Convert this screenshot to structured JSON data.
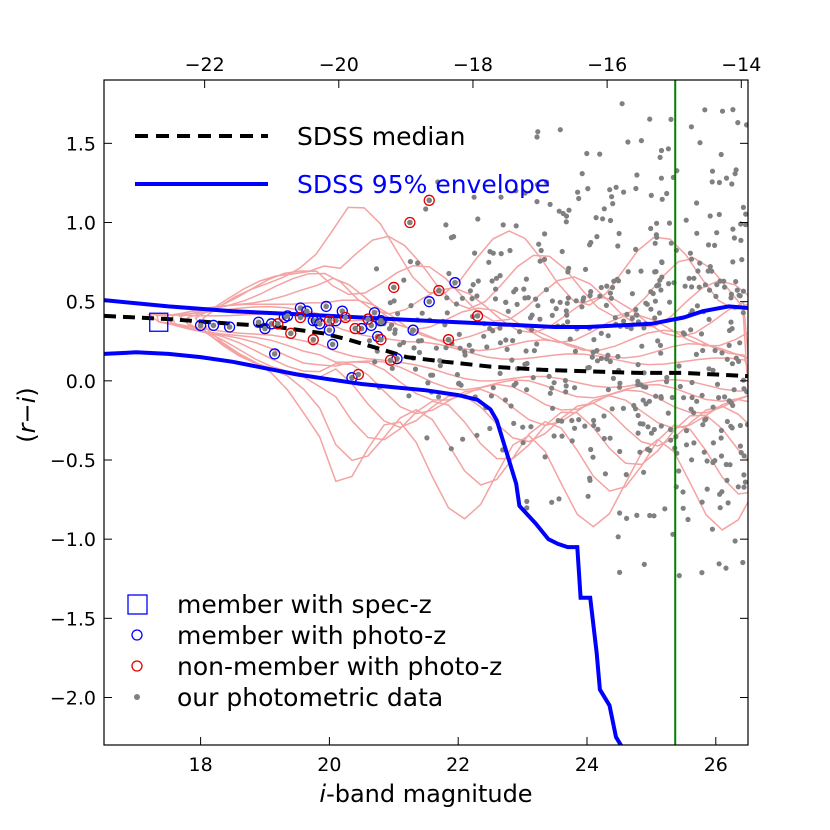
{
  "chart_data": {
    "type": "scatter",
    "xlabel": "i-band magnitude",
    "ylabel": "(r−i)",
    "xlim": [
      16.5,
      26.5
    ],
    "ylim": [
      -2.3,
      1.9
    ],
    "top_xlim": [
      -23.5,
      -13.9
    ],
    "xticks": [
      18,
      20,
      22,
      24,
      26
    ],
    "xtick_labels": [
      "18",
      "20",
      "22",
      "24",
      "26"
    ],
    "yticks": [
      -2.0,
      -1.5,
      -1.0,
      -0.5,
      0.0,
      0.5,
      1.0,
      1.5
    ],
    "ytick_labels": [
      "−2.0",
      "−1.5",
      "−1.0",
      "−0.5",
      "0.0",
      "0.5",
      "1.0",
      "1.5"
    ],
    "top_xticks": [
      -22,
      -20,
      -18,
      -16,
      -14
    ],
    "top_xtick_labels": [
      "−22",
      "−20",
      "−18",
      "−16",
      "−14"
    ],
    "vline_x": 25.37,
    "colors": {
      "median": "#000000",
      "envelope": "#0000ff",
      "contour": "#f4a3a3",
      "photometric": "#808080",
      "member": "#0000ff",
      "nonmember": "#e00000",
      "vline": "#008000"
    },
    "legend_top": [
      {
        "label": "SDSS median",
        "style": "dashed",
        "color": "#000000"
      },
      {
        "label": "SDSS 95% envelope",
        "style": "solid",
        "color": "#0000ff"
      }
    ],
    "legend_bottom": [
      {
        "label": "member with spec-z",
        "marker": "square",
        "color": "#0000ff"
      },
      {
        "label": "member with photo-z",
        "marker": "circle",
        "color": "#0000ff"
      },
      {
        "label": "non-member with photo-z",
        "marker": "circle",
        "color": "#e00000"
      },
      {
        "label": "our photometric data",
        "marker": "dot",
        "color": "#808080"
      }
    ],
    "series": [
      {
        "name": "SDSS median",
        "x": [
          16.5,
          17.5,
          18.5,
          19.2,
          19.9,
          20.3,
          20.8,
          21.2,
          21.8,
          22.5,
          23.3,
          24.0,
          24.8,
          25.5,
          26.5
        ],
        "y": [
          0.41,
          0.39,
          0.36,
          0.34,
          0.3,
          0.26,
          0.2,
          0.15,
          0.12,
          0.09,
          0.07,
          0.06,
          0.05,
          0.05,
          0.03
        ]
      },
      {
        "name": "SDSS 95% envelope upper",
        "x": [
          16.5,
          17.5,
          18.5,
          19.5,
          20.5,
          21.5,
          22.5,
          23.0,
          23.5,
          24.0,
          24.5,
          25.0,
          25.5,
          25.8,
          26.2,
          26.5
        ],
        "y": [
          0.51,
          0.47,
          0.44,
          0.42,
          0.4,
          0.38,
          0.36,
          0.35,
          0.34,
          0.34,
          0.35,
          0.36,
          0.4,
          0.44,
          0.47,
          0.46
        ]
      },
      {
        "name": "SDSS 95% envelope lower",
        "x": [
          16.5,
          17.0,
          17.5,
          18.0,
          18.5,
          19.0,
          19.5,
          20.0,
          20.5,
          21.0,
          21.5,
          22.0,
          22.3,
          22.5,
          22.6,
          22.75,
          22.9,
          22.95,
          23.2,
          23.4,
          23.55,
          23.7,
          23.85,
          23.9,
          24.05,
          24.15,
          24.2,
          24.35,
          24.45,
          24.6
        ],
        "y": [
          0.17,
          0.18,
          0.17,
          0.15,
          0.12,
          0.08,
          0.04,
          0.01,
          -0.02,
          -0.04,
          -0.06,
          -0.09,
          -0.12,
          -0.18,
          -0.25,
          -0.45,
          -0.65,
          -0.79,
          -0.9,
          -1.0,
          -1.03,
          -1.05,
          -1.05,
          -1.37,
          -1.37,
          -1.72,
          -1.95,
          -2.05,
          -2.25,
          -2.35
        ]
      },
      {
        "name": "member with spec-z",
        "x": [
          17.35
        ],
        "y": [
          0.37
        ]
      },
      {
        "name": "member with photo-z",
        "x": [
          18.0,
          18.2,
          18.45,
          18.9,
          19.0,
          19.1,
          19.15,
          19.3,
          19.35,
          19.55,
          19.65,
          19.75,
          19.8,
          19.85,
          19.95,
          20.0,
          20.05,
          20.1,
          20.2,
          20.35,
          20.5,
          20.65,
          20.7,
          20.75,
          20.8,
          21.05,
          21.3,
          21.55,
          21.95
        ],
        "y": [
          0.35,
          0.35,
          0.34,
          0.37,
          0.33,
          0.36,
          0.17,
          0.4,
          0.41,
          0.46,
          0.44,
          0.38,
          0.38,
          0.36,
          0.47,
          0.32,
          0.23,
          0.38,
          0.44,
          0.02,
          0.33,
          0.35,
          0.43,
          0.28,
          0.38,
          0.14,
          0.32,
          0.5,
          0.62
        ]
      },
      {
        "name": "non-member with photo-z",
        "x": [
          19.2,
          19.4,
          19.55,
          19.75,
          20.0,
          20.25,
          20.4,
          20.45,
          20.6,
          20.8,
          20.95,
          21.0,
          21.25,
          21.55,
          21.7,
          21.85,
          22.3
        ],
        "y": [
          0.36,
          0.3,
          0.4,
          0.26,
          0.38,
          0.4,
          0.33,
          0.04,
          0.39,
          0.26,
          0.13,
          0.59,
          1.0,
          1.14,
          0.57,
          0.26,
          0.41
        ]
      }
    ]
  }
}
